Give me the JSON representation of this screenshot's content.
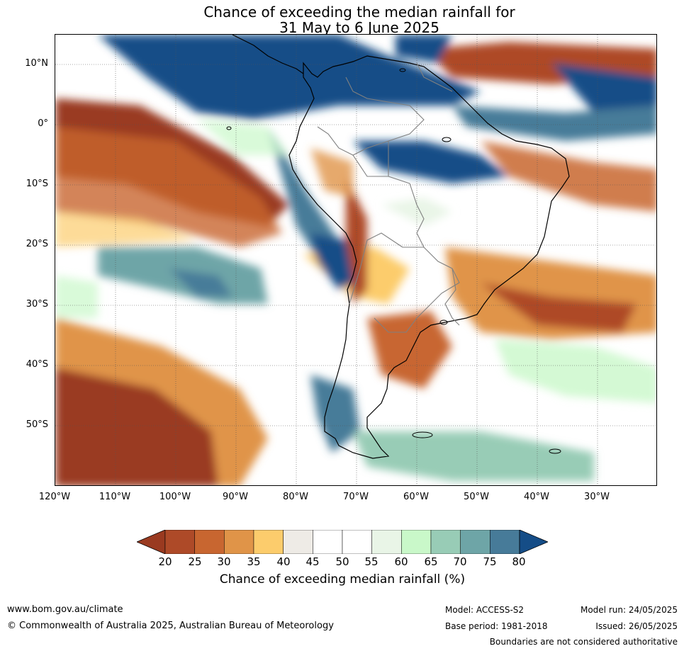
{
  "title": {
    "line1": "Chance of exceeding the median rainfall for",
    "line2": "31 May to 6 June 2025"
  },
  "map": {
    "lat_labels": [
      "10°N",
      "0°",
      "10°S",
      "20°S",
      "30°S",
      "40°S",
      "50°S"
    ],
    "lon_labels": [
      "120°W",
      "110°W",
      "100°W",
      "90°W",
      "80°W",
      "70°W",
      "60°W",
      "50°W",
      "40°W",
      "30°W"
    ]
  },
  "colorbar": {
    "label": "Chance of exceeding median rainfall (%)",
    "ticks": [
      "20",
      "25",
      "30",
      "35",
      "40",
      "45",
      "50",
      "55",
      "60",
      "65",
      "70",
      "75",
      "80"
    ],
    "colors": [
      "#9a3a20",
      "#ae4a28",
      "#c86630",
      "#e09448",
      "#fccc6c",
      "#eeebe6",
      "#ffffff",
      "#ffffff",
      "#e9f5e7",
      "#c9f8c9",
      "#98ccb6",
      "#6ea5a7",
      "#477b99",
      "#154d87"
    ]
  },
  "footer": {
    "website": "www.bom.gov.au/climate",
    "copyright": "© Commonwealth of Australia 2025, Australian Bureau of Meteorology",
    "model": "Model: ACCESS-S2",
    "base_period": "Base period: 1981-2018",
    "model_run": "Model run: 24/05/2025",
    "issued": "Issued: 26/05/2025",
    "boundaries_note": "Boundaries are not considered authoritative"
  }
}
